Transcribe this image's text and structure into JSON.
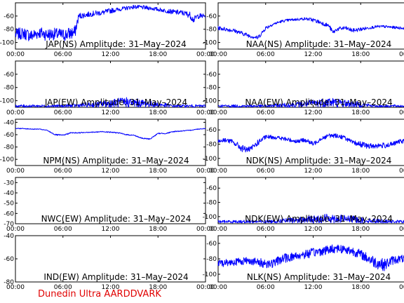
{
  "footer": "Dunedin Ultra AARDDVARK",
  "colors": {
    "trace": "#0000ff",
    "axes": "#000000",
    "footer": "#e00000"
  },
  "chart_data": [
    {
      "type": "line",
      "id": "jap-ns",
      "title": "JAP(NS) Amplitude: 31–May–2024",
      "x_ticks": [
        "00:00",
        "06:00",
        "12:00",
        "18:00",
        "00:00"
      ],
      "y_ticks": [
        "-60",
        "-80",
        "-100"
      ],
      "ylim": [
        -110,
        -40
      ],
      "series": [
        {
          "x": [
            0,
            1,
            2,
            3,
            4,
            5,
            6,
            7,
            7.5,
            8,
            9,
            10,
            11,
            12,
            13,
            14,
            15,
            16,
            17,
            18,
            19,
            20,
            21,
            22,
            22.5,
            23,
            24
          ],
          "y": [
            -88,
            -86,
            -90,
            -85,
            -88,
            -87,
            -89,
            -86,
            -85,
            -60,
            -58,
            -56,
            -55,
            -52,
            -50,
            -48,
            -46,
            -47,
            -48,
            -50,
            -52,
            -54,
            -55,
            -58,
            -66,
            -60,
            -60
          ],
          "spread": [
            9,
            9,
            10,
            9,
            10,
            9,
            10,
            10,
            10,
            5,
            4,
            4,
            4,
            4,
            3,
            3,
            3,
            3,
            3,
            3,
            3,
            4,
            4,
            5,
            5,
            4,
            4
          ]
        }
      ]
    },
    {
      "type": "line",
      "id": "naa-ns",
      "title": "NAA(NS) Amplitude: 31–May–2024",
      "x_ticks": [
        "00:00",
        "06:00",
        "12:00",
        "18:00",
        "00:00"
      ],
      "y_ticks": [
        "-60",
        "-80",
        "-100"
      ],
      "ylim": [
        -110,
        -40
      ],
      "series": [
        {
          "x": [
            0,
            1,
            2,
            3,
            4,
            5,
            5.5,
            6,
            7,
            8,
            9,
            10,
            11,
            12,
            13,
            14,
            14.5,
            15,
            16,
            17,
            18,
            19,
            20,
            21,
            22,
            23,
            24
          ],
          "y": [
            -78,
            -80,
            -82,
            -86,
            -90,
            -93,
            -86,
            -78,
            -72,
            -68,
            -66,
            -65,
            -64,
            -66,
            -70,
            -75,
            -85,
            -80,
            -78,
            -82,
            -80,
            -78,
            -76,
            -76,
            -77,
            -78,
            -79
          ],
          "spread": [
            3,
            3,
            3,
            3,
            3,
            3,
            3,
            3,
            2,
            2,
            2,
            2,
            2,
            3,
            3,
            3,
            3,
            3,
            3,
            3,
            3,
            2,
            2,
            2,
            2,
            2,
            2
          ]
        }
      ]
    },
    {
      "type": "line",
      "id": "jap-ew",
      "title": "JAP(EW) Amplitude: 31–May–2024",
      "x_ticks": [
        "00:00",
        "06:00",
        "12:00",
        "18:00",
        "00:00"
      ],
      "y_ticks": [
        "-60",
        "-80",
        "-100"
      ],
      "ylim": [
        -110,
        -40
      ],
      "series": [
        {
          "x": [
            0,
            2,
            4,
            6,
            8,
            10,
            11,
            12,
            13,
            14,
            15,
            16,
            17,
            18,
            20,
            22,
            24
          ],
          "y": [
            -108,
            -108,
            -108,
            -108,
            -107,
            -106,
            -105,
            -104,
            -103,
            -102,
            -103,
            -104,
            -105,
            -106,
            -108,
            -108,
            -108
          ],
          "spread": [
            2,
            2,
            2,
            2,
            3,
            4,
            5,
            6,
            7,
            8,
            7,
            6,
            5,
            4,
            2,
            2,
            2
          ]
        }
      ]
    },
    {
      "type": "line",
      "id": "naa-ew",
      "title": "NAA(EW) Amplitude: 31–May–2024",
      "x_ticks": [
        "00:00",
        "06:00",
        "12:00",
        "18:00",
        "00:00"
      ],
      "y_ticks": [
        "-60",
        "-80",
        "-100"
      ],
      "ylim": [
        -110,
        -40
      ],
      "series": [
        {
          "x": [
            0,
            2,
            4,
            6,
            8,
            10,
            11,
            12,
            13,
            14,
            15,
            16,
            17,
            18,
            20,
            22,
            24
          ],
          "y": [
            -108,
            -108,
            -108,
            -108,
            -107,
            -106,
            -105,
            -104,
            -103,
            -102,
            -103,
            -104,
            -105,
            -106,
            -108,
            -108,
            -108
          ],
          "spread": [
            2,
            2,
            2,
            2,
            3,
            4,
            5,
            6,
            7,
            8,
            7,
            6,
            5,
            4,
            2,
            2,
            2
          ]
        }
      ]
    },
    {
      "type": "line",
      "id": "npm-ns",
      "title": "NPM(NS) Amplitude: 31–May–2024",
      "x_ticks": [
        "00:00",
        "06:00",
        "12:00",
        "18:00",
        "00:00"
      ],
      "y_ticks": [
        "-40",
        "-60",
        "-80",
        "-100"
      ],
      "ylim": [
        -110,
        -35
      ],
      "series": [
        {
          "x": [
            0,
            1,
            2,
            3,
            4,
            5,
            6,
            7,
            8,
            9,
            10,
            11,
            12,
            13,
            14,
            15,
            16,
            17,
            18,
            19,
            20,
            21,
            22,
            23,
            24
          ],
          "y": [
            -50,
            -50,
            -51,
            -51,
            -53,
            -60,
            -61,
            -57,
            -57,
            -56,
            -56,
            -55,
            -56,
            -57,
            -60,
            -61,
            -66,
            -67,
            -58,
            -58,
            -55,
            -54,
            -53,
            -51,
            -50
          ],
          "spread": [
            0.6,
            0.6,
            0.6,
            0.6,
            0.6,
            1,
            1,
            0.8,
            0.8,
            0.8,
            0.8,
            0.8,
            0.8,
            0.8,
            0.8,
            0.8,
            1,
            1,
            0.8,
            0.8,
            0.8,
            0.8,
            0.6,
            0.6,
            0.6
          ]
        }
      ]
    },
    {
      "type": "line",
      "id": "ndk-ns",
      "title": "NDK(NS) Amplitude: 31–May–2024",
      "x_ticks": [
        "00:00",
        "06:00",
        "12:00",
        "18:00",
        "00:00"
      ],
      "y_ticks": [
        "-60",
        "-80",
        "-100"
      ],
      "ylim": [
        -110,
        -45
      ],
      "series": [
        {
          "x": [
            0,
            1,
            2,
            3,
            4,
            5,
            6,
            7,
            8,
            9,
            10,
            11,
            12,
            13,
            14,
            15,
            16,
            17,
            18,
            19,
            20,
            21,
            22,
            23,
            24
          ],
          "y": [
            -76,
            -74,
            -78,
            -86,
            -88,
            -78,
            -70,
            -70,
            -72,
            -74,
            -76,
            -74,
            -80,
            -72,
            -68,
            -68,
            -71,
            -78,
            -80,
            -83,
            -82,
            -82,
            -80,
            -76,
            -76
          ],
          "spread": [
            3,
            3,
            4,
            5,
            4,
            4,
            3,
            3,
            3,
            3,
            3,
            3,
            3,
            3,
            3,
            3,
            3,
            3,
            4,
            4,
            4,
            4,
            3,
            3,
            3
          ]
        }
      ]
    },
    {
      "type": "line",
      "id": "nwc-ew",
      "title": "NWC(EW) Amplitude: 31–May–2024",
      "x_ticks": [
        "00:00",
        "06:00",
        "12:00",
        "18:00",
        "00:00"
      ],
      "y_ticks": [
        "-30",
        "-40",
        "-50",
        "-60",
        "-70"
      ],
      "ylim": [
        -70,
        -25
      ],
      "series": []
    },
    {
      "type": "line",
      "id": "ndk-ew",
      "title": "NDK(EW) Amplitude: 31–May–2024",
      "x_ticks": [
        "00:00",
        "06:00",
        "12:00",
        "18:00",
        "00:00"
      ],
      "y_ticks": [
        "-60",
        "-80",
        "-100"
      ],
      "ylim": [
        -110,
        -45
      ],
      "series": [
        {
          "x": [
            0,
            2,
            4,
            6,
            8,
            10,
            11,
            12,
            13,
            14,
            15,
            16,
            17,
            18,
            20,
            22,
            24
          ],
          "y": [
            -107,
            -107,
            -107,
            -107,
            -106,
            -105,
            -104,
            -104,
            -103,
            -102,
            -103,
            -103,
            -104,
            -105,
            -106,
            -107,
            -107
          ],
          "spread": [
            2,
            2,
            2,
            2,
            3,
            4,
            5,
            5,
            6,
            7,
            6,
            5,
            5,
            4,
            3,
            2,
            2
          ]
        }
      ]
    },
    {
      "type": "line",
      "id": "ind-ew",
      "title": "IND(EW) Amplitude: 31–May–2024",
      "x_ticks": [
        "00:00",
        "06:00",
        "12:00",
        "18:00",
        "00:00"
      ],
      "y_ticks": [
        "-40",
        "-60",
        "-80"
      ],
      "ylim": [
        -80,
        -40
      ],
      "series": []
    },
    {
      "type": "line",
      "id": "nlk-ns",
      "title": "NLK(NS) Amplitude: 31–May–2024",
      "x_ticks": [
        "00:00",
        "06:00",
        "12:00",
        "18:00",
        "00:00"
      ],
      "y_ticks": [
        "-60",
        "-80",
        "-100"
      ],
      "ylim": [
        -110,
        -50
      ],
      "series": [
        {
          "x": [
            0,
            1,
            2,
            3,
            4,
            5,
            6,
            7,
            8,
            9,
            10,
            11,
            12,
            13,
            14,
            15,
            16,
            17,
            18,
            19,
            20,
            21,
            22,
            23,
            24
          ],
          "y": [
            -86,
            -85,
            -84,
            -83,
            -82,
            -85,
            -86,
            -86,
            -80,
            -78,
            -76,
            -74,
            -72,
            -70,
            -68,
            -66,
            -68,
            -70,
            -74,
            -80,
            -85,
            -88,
            -82,
            -80,
            -80
          ],
          "spread": [
            5,
            5,
            5,
            5,
            5,
            6,
            6,
            6,
            6,
            6,
            6,
            6,
            6,
            6,
            6,
            6,
            6,
            6,
            6,
            7,
            8,
            8,
            6,
            5,
            5
          ]
        }
      ]
    }
  ]
}
